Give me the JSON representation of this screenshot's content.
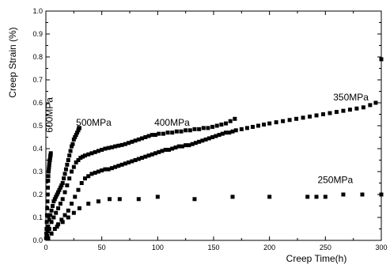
{
  "chart_data": {
    "type": "scatter",
    "xlabel": "Creep Time(h)",
    "ylabel": "Creep Strain (%)",
    "xlim": [
      0,
      300
    ],
    "ylim": [
      0,
      1.0
    ],
    "xticks": [
      0,
      50,
      100,
      150,
      200,
      250,
      300
    ],
    "yticks": [
      0.0,
      0.1,
      0.2,
      0.3,
      0.4,
      0.5,
      0.6,
      0.7,
      0.8,
      0.9,
      1.0
    ],
    "grid": false,
    "legend": "none",
    "marker": "square",
    "series": [
      {
        "name": "600MPa",
        "x": [
          0.2,
          0.4,
          0.6,
          0.8,
          1.0,
          1.2,
          1.4,
          1.6,
          1.8,
          2.0,
          2.2,
          2.4,
          2.6,
          2.8,
          3.0,
          3.2,
          3.4,
          3.6,
          3.8,
          4.0,
          4.2,
          4.4
        ],
        "y": [
          0.01,
          0.03,
          0.05,
          0.08,
          0.11,
          0.14,
          0.17,
          0.2,
          0.23,
          0.26,
          0.28,
          0.3,
          0.31,
          0.32,
          0.33,
          0.34,
          0.35,
          0.35,
          0.36,
          0.37,
          0.37,
          0.38
        ]
      },
      {
        "name": "500MPa",
        "x": [
          0.5,
          1,
          1.5,
          2,
          3,
          4,
          5,
          6,
          7,
          8,
          9,
          10,
          11,
          12,
          13,
          14,
          15,
          16,
          17,
          18,
          19,
          20,
          21,
          22,
          23,
          24,
          25,
          26,
          27,
          28,
          29,
          29.5,
          30
        ],
        "y": [
          0.01,
          0.02,
          0.04,
          0.06,
          0.09,
          0.11,
          0.13,
          0.15,
          0.17,
          0.18,
          0.19,
          0.2,
          0.21,
          0.22,
          0.23,
          0.24,
          0.25,
          0.27,
          0.29,
          0.31,
          0.33,
          0.35,
          0.37,
          0.39,
          0.41,
          0.42,
          0.44,
          0.45,
          0.46,
          0.47,
          0.48,
          0.49,
          0.49
        ]
      },
      {
        "name": "400MPa",
        "x": [
          1,
          3,
          5,
          7,
          9,
          11,
          13,
          15,
          17,
          19,
          21,
          23,
          25,
          27,
          29,
          31,
          33,
          35,
          38,
          41,
          44,
          47,
          50,
          53,
          56,
          59,
          62,
          65,
          68,
          71,
          74,
          77,
          80,
          83,
          86,
          89,
          92,
          95,
          98,
          101,
          105,
          109,
          113,
          117,
          121,
          125,
          129,
          133,
          137,
          141,
          145,
          149,
          153,
          157,
          161,
          165,
          169
        ],
        "y": [
          0.02,
          0.05,
          0.08,
          0.1,
          0.12,
          0.14,
          0.16,
          0.18,
          0.21,
          0.24,
          0.27,
          0.3,
          0.32,
          0.34,
          0.35,
          0.36,
          0.365,
          0.37,
          0.375,
          0.38,
          0.385,
          0.39,
          0.395,
          0.4,
          0.403,
          0.406,
          0.41,
          0.413,
          0.416,
          0.42,
          0.425,
          0.43,
          0.435,
          0.44,
          0.445,
          0.45,
          0.455,
          0.46,
          0.46,
          0.465,
          0.465,
          0.47,
          0.47,
          0.475,
          0.475,
          0.48,
          0.48,
          0.485,
          0.485,
          0.49,
          0.49,
          0.495,
          0.5,
          0.505,
          0.51,
          0.52,
          0.53
        ]
      },
      {
        "name": "350MPa",
        "x": [
          2,
          5,
          8,
          11,
          14,
          17,
          20,
          23,
          26,
          29,
          32,
          35,
          38,
          41,
          44,
          47,
          50,
          53,
          56,
          59,
          62,
          65,
          68,
          71,
          74,
          77,
          80,
          83,
          86,
          89,
          92,
          95,
          98,
          101,
          104,
          107,
          110,
          113,
          116,
          119,
          122,
          125,
          128,
          131,
          134,
          137,
          140,
          143,
          146,
          149,
          152,
          155,
          158,
          161,
          164,
          167,
          170,
          175,
          180,
          185,
          190,
          195,
          200,
          206,
          212,
          218,
          224,
          230,
          236,
          242,
          248,
          254,
          260,
          266,
          272,
          278,
          284,
          290,
          295,
          300
        ],
        "y": [
          0.01,
          0.03,
          0.05,
          0.07,
          0.09,
          0.11,
          0.13,
          0.16,
          0.19,
          0.22,
          0.25,
          0.27,
          0.28,
          0.29,
          0.295,
          0.3,
          0.305,
          0.31,
          0.31,
          0.315,
          0.32,
          0.325,
          0.33,
          0.335,
          0.34,
          0.345,
          0.35,
          0.355,
          0.36,
          0.365,
          0.37,
          0.375,
          0.38,
          0.385,
          0.39,
          0.395,
          0.395,
          0.4,
          0.405,
          0.41,
          0.41,
          0.415,
          0.415,
          0.42,
          0.425,
          0.43,
          0.435,
          0.44,
          0.445,
          0.45,
          0.455,
          0.46,
          0.465,
          0.47,
          0.47,
          0.475,
          0.48,
          0.485,
          0.49,
          0.495,
          0.5,
          0.505,
          0.51,
          0.515,
          0.52,
          0.525,
          0.53,
          0.535,
          0.54,
          0.545,
          0.55,
          0.555,
          0.56,
          0.565,
          0.57,
          0.575,
          0.58,
          0.59,
          0.6,
          0.79
        ]
      },
      {
        "name": "250MPa",
        "x": [
          2,
          5,
          10,
          15,
          20,
          25,
          30,
          38,
          47,
          57,
          66,
          83,
          100,
          133,
          167,
          200,
          234,
          242,
          250,
          266,
          283,
          300
        ],
        "y": [
          0.01,
          0.03,
          0.06,
          0.08,
          0.1,
          0.12,
          0.14,
          0.16,
          0.17,
          0.18,
          0.18,
          0.18,
          0.19,
          0.18,
          0.19,
          0.19,
          0.19,
          0.19,
          0.19,
          0.2,
          0.2,
          0.2
        ]
      }
    ],
    "annotations": [
      {
        "text": "600MPa",
        "series": "600MPa",
        "x": 6,
        "y": 0.47,
        "rotate": -90
      },
      {
        "text": "500MPa",
        "series": "500MPa",
        "x": 27,
        "y": 0.5,
        "rotate": 0
      },
      {
        "text": "400MPa",
        "series": "400MPa",
        "x": 97,
        "y": 0.5,
        "rotate": 0
      },
      {
        "text": "350MPa",
        "series": "350MPa",
        "x": 257,
        "y": 0.61,
        "rotate": 0
      },
      {
        "text": "250MPa",
        "series": "250MPa",
        "x": 243,
        "y": 0.25,
        "rotate": 0
      }
    ]
  }
}
